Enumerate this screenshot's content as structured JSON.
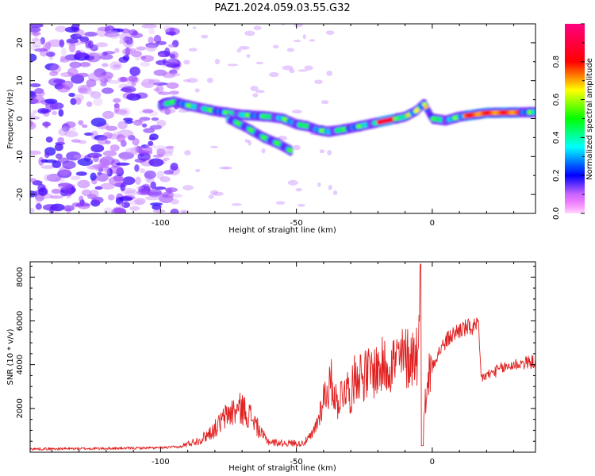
{
  "chart_data": [
    {
      "type": "heatmap",
      "title": "PAZ1.2024.059.03.55.G32",
      "xlabel": "Height of straight line (km)",
      "ylabel": "Frequency (Hz)",
      "xlim": [
        -148,
        38
      ],
      "ylim": [
        -25,
        25
      ],
      "x_ticks": [
        -100,
        -50,
        0
      ],
      "y_ticks": [
        -20,
        -10,
        0,
        10,
        20
      ],
      "grid": false,
      "colorbar": {
        "label": "Normalized spectral amplitude",
        "range": [
          0,
          1
        ],
        "ticks": [
          0.0,
          0.2,
          0.4,
          0.6,
          0.8
        ],
        "colormap": [
          "#ff00ff",
          "#ff00cc",
          "#0000ff",
          "#00ffff",
          "#00ff00",
          "#ffff00",
          "#ff0000",
          "#ff0080"
        ]
      },
      "features": {
        "noise_region_x": [
          -148,
          -94
        ],
        "noise_amplitude": 0.1,
        "trend_x": [
          -100,
          -95,
          -90,
          -80,
          -70,
          -60,
          -55,
          -50,
          -46,
          -42,
          -38,
          -30,
          -20,
          -10,
          -6,
          -3,
          0,
          5,
          10,
          20,
          38
        ],
        "trend_y": [
          3.5,
          4.5,
          3.5,
          2.0,
          1.0,
          0.5,
          0,
          -1.5,
          -2,
          -3,
          -3.5,
          -2.5,
          -1.0,
          0.5,
          2,
          4,
          0,
          -0.5,
          0.5,
          1.5,
          1.7
        ],
        "branch_x": [
          -75,
          -68,
          -62,
          -57,
          -52
        ],
        "branch_y": [
          0,
          -2.5,
          -5,
          -6.5,
          -8.5
        ],
        "peak_amplitude_x": [
          -17,
          25
        ]
      }
    },
    {
      "type": "line",
      "xlabel": "Height of straight line (km)",
      "ylabel": "SNR (10 * v/v)",
      "xlim": [
        -148,
        38
      ],
      "ylim": [
        0,
        8700
      ],
      "x_ticks": [
        -100,
        -50,
        0
      ],
      "y_ticks": [
        2000,
        4000,
        6000,
        8000
      ],
      "grid": false,
      "color": "#e02020",
      "envelope": {
        "x": [
          -148,
          -120,
          -100,
          -92,
          -85,
          -80,
          -75,
          -70,
          -66,
          -63,
          -60,
          -55,
          -50,
          -47,
          -44,
          -42,
          -40,
          -37,
          -35,
          -32,
          -30,
          -28,
          -25,
          -20,
          -15,
          -10,
          -7,
          -5,
          -4,
          -3,
          -2,
          0,
          3,
          6,
          10,
          14,
          17,
          18,
          20,
          25,
          30,
          38
        ],
        "y": [
          150,
          170,
          200,
          250,
          500,
          900,
          1500,
          1700,
          1300,
          700,
          400,
          350,
          350,
          450,
          800,
          1500,
          2500,
          3200,
          2200,
          3100,
          2600,
          3700,
          3500,
          3800,
          4100,
          4300,
          4400,
          4700,
          8600,
          1500,
          3200,
          4000,
          4700,
          5200,
          5600,
          5700,
          5700,
          3400,
          3500,
          3800,
          4000,
          4150
        ]
      }
    }
  ]
}
